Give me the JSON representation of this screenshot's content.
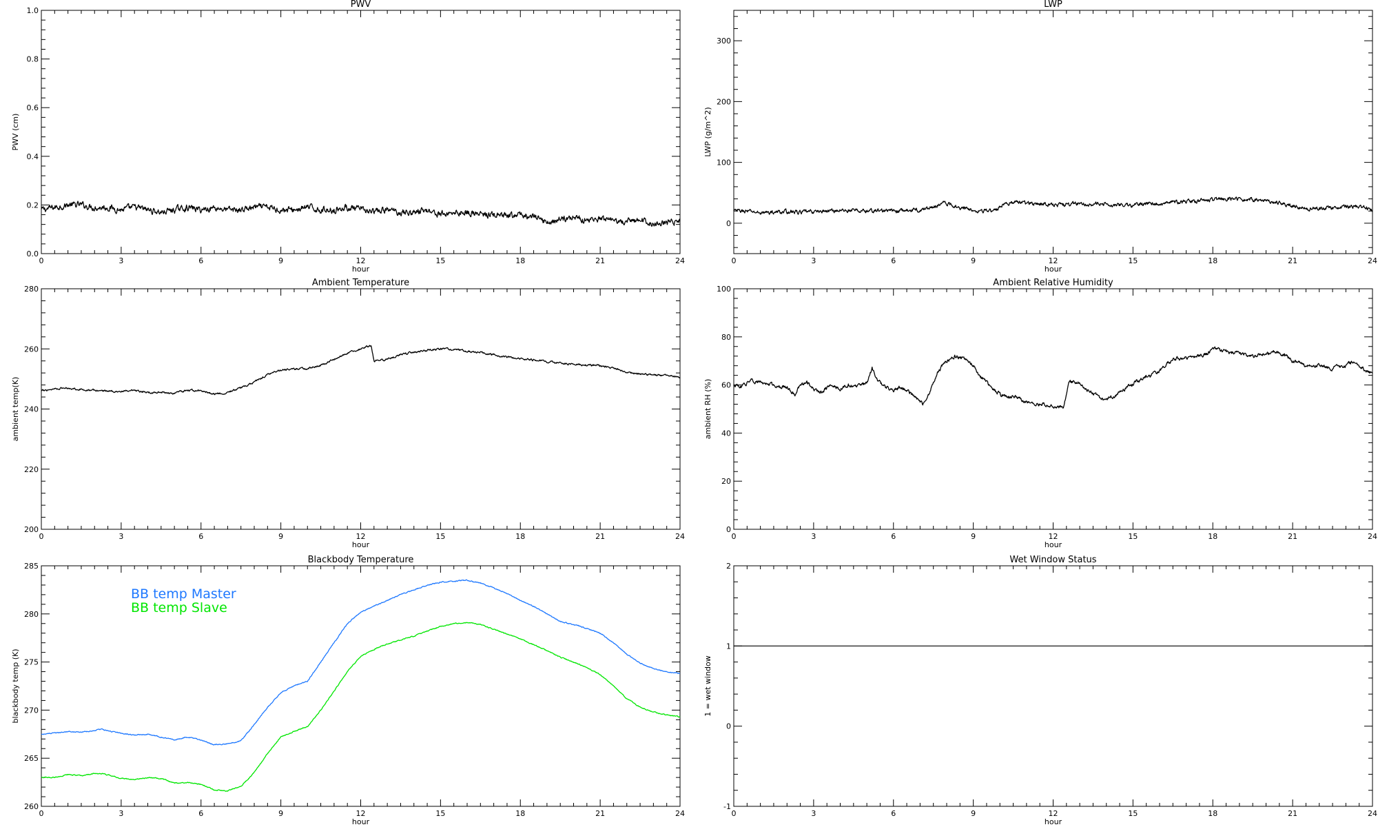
{
  "chart_data": [
    {
      "type": "line",
      "title": "PWV",
      "xlabel": "hour",
      "ylabel": "PWV (cm)",
      "xlim": [
        0,
        24
      ],
      "ylim": [
        0.0,
        1.0
      ],
      "xticks": [
        "0",
        "3",
        "6",
        "9",
        "12",
        "15",
        "18",
        "21",
        "24"
      ],
      "yticks": [
        "0.0",
        "0.2",
        "0.4",
        "0.6",
        "0.8",
        "1.0"
      ],
      "series": [
        {
          "color": "#000000",
          "noise": 0.01,
          "x": [
            0,
            0.5,
            1,
            1.5,
            2,
            2.5,
            3,
            3.5,
            4,
            4.5,
            5,
            5.5,
            6,
            6.5,
            7,
            7.5,
            8,
            8.5,
            9,
            9.5,
            10,
            10.5,
            11,
            11.5,
            12,
            12.5,
            13,
            13.5,
            14,
            14.5,
            15,
            15.5,
            16,
            16.5,
            17,
            17.5,
            18,
            18.5,
            19,
            19.5,
            20,
            20.5,
            21,
            21.5,
            22,
            22.5,
            23,
            23.5,
            24
          ],
          "y": [
            0.18,
            0.19,
            0.2,
            0.2,
            0.19,
            0.19,
            0.18,
            0.19,
            0.18,
            0.17,
            0.18,
            0.19,
            0.18,
            0.19,
            0.18,
            0.18,
            0.19,
            0.19,
            0.18,
            0.18,
            0.19,
            0.18,
            0.18,
            0.19,
            0.18,
            0.17,
            0.18,
            0.17,
            0.17,
            0.18,
            0.16,
            0.17,
            0.17,
            0.16,
            0.16,
            0.15,
            0.16,
            0.15,
            0.13,
            0.14,
            0.15,
            0.14,
            0.14,
            0.13,
            0.13,
            0.14,
            0.12,
            0.13,
            0.13
          ]
        }
      ]
    },
    {
      "type": "line",
      "title": "LWP",
      "xlabel": "hour",
      "ylabel": "LWP (g/m^2)",
      "xlim": [
        0,
        24
      ],
      "ylim": [
        -50,
        350
      ],
      "xticks": [
        "0",
        "3",
        "6",
        "9",
        "12",
        "15",
        "18",
        "21",
        "24"
      ],
      "yticks": [
        "0",
        "100",
        "200",
        "300"
      ],
      "series": [
        {
          "color": "#000000",
          "noise": 2.5,
          "x": [
            0,
            0.5,
            1,
            1.5,
            2,
            2.5,
            3,
            3.5,
            4,
            4.5,
            5,
            5.5,
            6,
            6.5,
            7,
            7.5,
            7.8,
            8.2,
            8.5,
            9,
            9.5,
            9.8,
            10.2,
            10.5,
            11,
            11.5,
            12,
            12.5,
            13,
            13.5,
            14,
            14.5,
            15,
            15.5,
            16,
            16.5,
            17,
            17.5,
            18,
            18.5,
            19,
            19.5,
            20,
            20.5,
            21,
            21.5,
            22,
            22.5,
            23,
            23.5,
            24
          ],
          "y": [
            20,
            20,
            17,
            18,
            19,
            18,
            19,
            20,
            21,
            21,
            20,
            21,
            20,
            21,
            22,
            26,
            34,
            30,
            26,
            22,
            20,
            20,
            33,
            35,
            33,
            32,
            31,
            30,
            33,
            31,
            31,
            30,
            29,
            33,
            31,
            34,
            36,
            37,
            38,
            40,
            40,
            39,
            37,
            33,
            28,
            24,
            24,
            25,
            27,
            28,
            23
          ]
        }
      ]
    },
    {
      "type": "line",
      "title": "Ambient Temperature",
      "xlabel": "hour",
      "ylabel": "ambient temp(K)",
      "xlim": [
        0,
        24
      ],
      "ylim": [
        200,
        280
      ],
      "xticks": [
        "0",
        "3",
        "6",
        "9",
        "12",
        "15",
        "18",
        "21",
        "24"
      ],
      "yticks": [
        "200",
        "220",
        "240",
        "260",
        "280"
      ],
      "series": [
        {
          "color": "#000000",
          "noise": 0.25,
          "x": [
            0,
            0.5,
            1,
            1.5,
            2,
            2.5,
            3,
            3.5,
            4,
            4.5,
            5,
            5.5,
            6,
            6.5,
            7,
            7.5,
            8,
            8.5,
            9,
            9.5,
            10,
            10.5,
            11,
            11.5,
            12,
            12.4,
            12.5,
            13,
            13.5,
            14,
            14.5,
            15,
            15.5,
            16,
            16.5,
            17,
            17.5,
            18,
            18.5,
            19,
            19.5,
            20,
            20.5,
            21,
            21.5,
            22,
            22.5,
            23,
            23.5,
            24
          ],
          "y": [
            246,
            246.8,
            247,
            246.5,
            246.2,
            246,
            245.8,
            246,
            245.5,
            245.6,
            245.2,
            246.3,
            246,
            245,
            245.5,
            247,
            249,
            251.5,
            253,
            253.3,
            253.5,
            254.5,
            256.5,
            258.5,
            260,
            261,
            256,
            256.5,
            258,
            259,
            259.5,
            260,
            259.8,
            259.3,
            258.8,
            258,
            257.3,
            256.8,
            256.3,
            255.8,
            255.3,
            254.9,
            254.6,
            254.4,
            253.5,
            252.2,
            251.6,
            251.4,
            251.1,
            250.5
          ]
        }
      ]
    },
    {
      "type": "line",
      "title": "Ambient Relative Humidity",
      "xlabel": "hour",
      "ylabel": "ambient RH (%)",
      "xlim": [
        0,
        24
      ],
      "ylim": [
        0,
        100
      ],
      "xticks": [
        "0",
        "3",
        "6",
        "9",
        "12",
        "15",
        "18",
        "21",
        "24"
      ],
      "yticks": [
        "0",
        "20",
        "40",
        "60",
        "80",
        "100"
      ],
      "series": [
        {
          "color": "#000000",
          "noise": 0.6,
          "x": [
            0,
            0.3,
            0.6,
            1,
            1.5,
            2,
            2.3,
            2.5,
            2.8,
            3,
            3.3,
            3.6,
            4,
            4.3,
            4.6,
            5,
            5.2,
            5.4,
            5.7,
            6,
            6.3,
            6.6,
            6.9,
            7.1,
            7.4,
            7.7,
            8,
            8.3,
            8.6,
            9,
            9.3,
            9.6,
            10,
            10.3,
            10.6,
            11,
            11.5,
            12,
            12.4,
            12.6,
            13,
            13.3,
            13.6,
            13.9,
            14.2,
            14.5,
            14.8,
            15.1,
            15.4,
            15.7,
            16,
            16.3,
            16.6,
            16.9,
            17.2,
            17.5,
            17.8,
            18,
            18.5,
            19,
            19.5,
            20,
            20.3,
            20.6,
            21,
            21.5,
            22,
            22.5,
            23,
            23.3,
            23.6,
            24
          ],
          "y": [
            60,
            59,
            62,
            61,
            60,
            59,
            56,
            60,
            61,
            58,
            57,
            60,
            58,
            60,
            59,
            61,
            67,
            62,
            59,
            58,
            59,
            57,
            54,
            52,
            58,
            66,
            70,
            72,
            71,
            68,
            63,
            60,
            56,
            55,
            55,
            53,
            52,
            51,
            51,
            61,
            61,
            58,
            56,
            54,
            55,
            57,
            59,
            61,
            63,
            64,
            66,
            69,
            71,
            71,
            71,
            72,
            73,
            75,
            74,
            73,
            72,
            73,
            74,
            73,
            70,
            68,
            68,
            67,
            68,
            70,
            67,
            65
          ]
        }
      ]
    },
    {
      "type": "line",
      "title": "Blackbody Temperature",
      "xlabel": "hour",
      "ylabel": "blackbody temp (K)",
      "xlim": [
        0,
        24
      ],
      "ylim": [
        260,
        285
      ],
      "xticks": [
        "0",
        "3",
        "6",
        "9",
        "12",
        "15",
        "18",
        "21",
        "24"
      ],
      "yticks": [
        "260",
        "265",
        "270",
        "275",
        "280",
        "285"
      ],
      "series": [
        {
          "name": "BB temp Master",
          "color": "#1e78ff",
          "noise": 0.04,
          "x": [
            0,
            0.5,
            1,
            1.5,
            2,
            2.3,
            2.6,
            3,
            3.5,
            4,
            4.5,
            5,
            5.5,
            6,
            6.5,
            7,
            7.5,
            8,
            8.5,
            9,
            9.5,
            10,
            10.5,
            11,
            11.5,
            12,
            12.5,
            13,
            13.5,
            14,
            14.5,
            15,
            15.5,
            16,
            16.5,
            17,
            17.5,
            18,
            18.5,
            19,
            19.5,
            20,
            20.5,
            21,
            21.5,
            22,
            22.5,
            23,
            23.5,
            24
          ],
          "y": [
            267.5,
            267.6,
            267.8,
            267.7,
            267.9,
            268,
            267.8,
            267.6,
            267.4,
            267.5,
            267.2,
            266.9,
            267.2,
            266.9,
            266.4,
            266.5,
            266.8,
            268.5,
            270.3,
            271.8,
            272.5,
            273,
            275,
            277,
            279,
            280.2,
            280.8,
            281.4,
            282,
            282.5,
            283,
            283.3,
            283.4,
            283.5,
            283.2,
            282.7,
            282.1,
            281.4,
            280.8,
            280,
            279.2,
            278.9,
            278.5,
            278,
            277,
            275.8,
            274.9,
            274.3,
            274,
            273.8
          ]
        },
        {
          "name": "BB temp Slave",
          "color": "#00e600",
          "noise": 0.04,
          "x": [
            0,
            0.5,
            1,
            1.5,
            2,
            2.3,
            2.6,
            3,
            3.5,
            4,
            4.5,
            5,
            5.5,
            6,
            6.5,
            7,
            7.5,
            8,
            8.5,
            9,
            9.5,
            10,
            10.5,
            11,
            11.5,
            12,
            12.5,
            13,
            13.5,
            14,
            14.5,
            15,
            15.5,
            16,
            16.5,
            17,
            17.5,
            18,
            18.5,
            19,
            19.5,
            20,
            20.5,
            21,
            21.5,
            22,
            22.5,
            23,
            23.5,
            24
          ],
          "y": [
            263,
            263,
            263.3,
            263.2,
            263.4,
            263.4,
            263.2,
            262.9,
            262.8,
            263,
            262.9,
            262.4,
            262.5,
            262.3,
            261.7,
            261.6,
            262.1,
            263.5,
            265.5,
            267.2,
            267.8,
            268.3,
            270,
            272,
            274,
            275.6,
            276.3,
            276.9,
            277.3,
            277.7,
            278.2,
            278.7,
            279,
            279.1,
            278.9,
            278.4,
            277.9,
            277.4,
            276.8,
            276.2,
            275.5,
            275,
            274.4,
            273.7,
            272.5,
            271.2,
            270.3,
            269.8,
            269.5,
            269.3
          ]
        }
      ]
    },
    {
      "type": "line",
      "title": "Wet Window Status",
      "xlabel": "hour",
      "ylabel": "1 = wet window",
      "xlim": [
        0,
        24
      ],
      "ylim": [
        -1,
        2
      ],
      "xticks": [
        "0",
        "3",
        "6",
        "9",
        "12",
        "15",
        "18",
        "21",
        "24"
      ],
      "yticks": [
        "-1",
        "0",
        "1",
        "2"
      ],
      "series": [
        {
          "color": "#000000",
          "noise": 0,
          "x": [
            0,
            24
          ],
          "y": [
            1,
            1
          ]
        }
      ]
    }
  ]
}
